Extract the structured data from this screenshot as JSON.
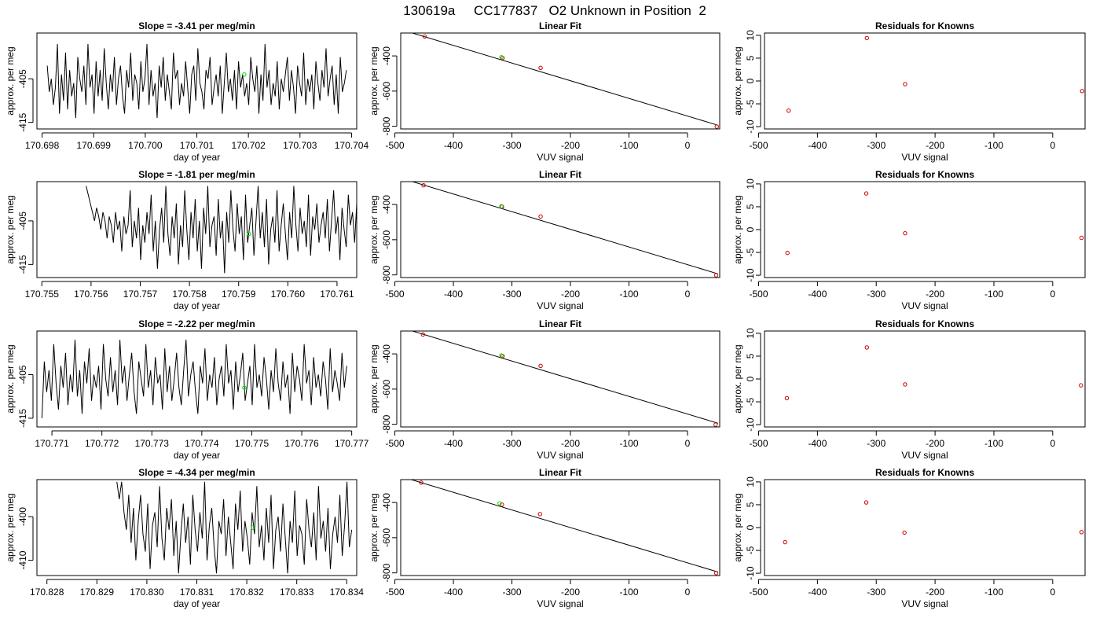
{
  "title": "130619a     CC177837   O2 Unknown in Position  2",
  "colors": {
    "known_point": "#cc0000",
    "unknown_point": "#00dd00",
    "line": "#000000"
  },
  "chart_data": [
    {
      "type": "line",
      "title": "Slope =  -3.41  per meg/min",
      "xlabel": "day of year",
      "ylabel": "approx. per meg",
      "xlim": [
        170.6979,
        170.7041
      ],
      "ylim": [
        -416.5,
        -394.5
      ],
      "xticks": [
        "170.698",
        "170.699",
        "170.700",
        "170.701",
        "170.702",
        "170.703",
        "170.704"
      ],
      "yticks": [
        "-405",
        "-415"
      ],
      "x_start": 170.6981,
      "x_end": 170.7039,
      "y": [
        -402,
        -408,
        -405,
        -411,
        -407,
        -397,
        -413,
        -404,
        -410,
        -399,
        -412,
        -403,
        -409,
        -406,
        -414,
        -400,
        -405,
        -408,
        -402,
        -411,
        -397,
        -407,
        -404,
        -413,
        -401,
        -409,
        -403,
        -410,
        -398,
        -406,
        -412,
        -404,
        -408,
        -400,
        -411,
        -405,
        -402,
        -409,
        -413,
        -403,
        -407,
        -399,
        -410,
        -404,
        -406,
        -412,
        -401,
        -408,
        -405,
        -397,
        -411,
        -403,
        -409,
        -406,
        -414,
        -402,
        -407,
        -400,
        -410,
        -404,
        -408,
        -412,
        -399,
        -405,
        -403,
        -411,
        -406,
        -409,
        -401,
        -407,
        -413,
        -404,
        -402,
        -410,
        -398,
        -406,
        -408,
        -412,
        -403,
        -405,
        -400,
        -411,
        -407,
        -404,
        -409,
        -402,
        -413,
        -406,
        -399,
        -408,
        -405,
        -410,
        -403,
        -412,
        -401,
        -407,
        -404,
        -409,
        -406,
        -411,
        -400,
        -405,
        -408,
        -402,
        -413,
        -404,
        -410,
        -397,
        -407,
        -403,
        -411,
        -406,
        -409,
        -401,
        -412,
        -405,
        -408,
        -404,
        -400,
        -410,
        -403,
        -407,
        -413,
        -402,
        -406,
        -409,
        -399,
        -411,
        -405,
        -408,
        -404,
        -412,
        -401,
        -406,
        -410,
        -403,
        -407,
        -398,
        -409,
        -405,
        -402,
        -411,
        -404,
        -413,
        -400,
        -408,
        -406,
        -403
      ],
      "unknown_point": {
        "x": 170.70192,
        "y": -404.0
      }
    },
    {
      "type": "scatter",
      "title": "Linear Fit",
      "xlabel": "VUV signal",
      "ylabel": "approx. per meg",
      "xlim": [
        -490,
        55
      ],
      "ylim": [
        -815,
        -270
      ],
      "xticks": [
        -500,
        -400,
        -300,
        -200,
        -100,
        0
      ],
      "yticks": [
        -400,
        -600,
        -800
      ],
      "knowns": [
        {
          "x": -449,
          "y": -290
        },
        {
          "x": -316,
          "y": -412
        },
        {
          "x": -251,
          "y": -468
        },
        {
          "x": 50,
          "y": -802
        }
      ],
      "unknown": {
        "x": -318,
        "y": -407
      },
      "fit_line": [
        {
          "x": -480,
          "y": -260
        },
        {
          "x": 52,
          "y": -794
        }
      ]
    },
    {
      "type": "scatter",
      "title": "Residuals for Knowns",
      "xlabel": "VUV signal",
      "ylabel": "approx. per meg",
      "xlim": [
        -490,
        55
      ],
      "ylim": [
        -10.5,
        10.5
      ],
      "xticks": [
        -500,
        -400,
        -300,
        -200,
        -100,
        0
      ],
      "yticks": [
        10,
        5,
        0,
        -5,
        -10
      ],
      "points": [
        {
          "x": -449,
          "y": -6.5
        },
        {
          "x": -316,
          "y": 9.4
        },
        {
          "x": -251,
          "y": -0.7
        },
        {
          "x": 50,
          "y": -2.2
        }
      ]
    },
    {
      "type": "line",
      "title": "Slope =  -1.81  per meg/min",
      "xlabel": "day of year",
      "ylabel": "approx. per meg",
      "xlim": [
        170.7549,
        170.7614
      ],
      "ylim": [
        -418,
        -396
      ],
      "xticks": [
        "170.755",
        "170.756",
        "170.757",
        "170.758",
        "170.759",
        "170.760",
        "170.761"
      ],
      "yticks": [
        "-405",
        "-415"
      ],
      "x_start": 170.7559,
      "x_end": 170.7614,
      "y": [
        -397,
        -399,
        -401,
        -403,
        -405,
        -402,
        -404,
        -407,
        -403,
        -405,
        -409,
        -404,
        -406,
        -410,
        -403,
        -407,
        -405,
        -412,
        -404,
        -408,
        -406,
        -398,
        -411,
        -405,
        -409,
        -402,
        -414,
        -406,
        -410,
        -403,
        -408,
        -399,
        -412,
        -405,
        -416,
        -407,
        -402,
        -410,
        -397,
        -408,
        -413,
        -404,
        -409,
        -401,
        -415,
        -406,
        -411,
        -398,
        -407,
        -414,
        -403,
        -409,
        -400,
        -412,
        -405,
        -416,
        -402,
        -408,
        -397,
        -411,
        -406,
        -404,
        -413,
        -400,
        -409,
        -405,
        -417,
        -403,
        -410,
        -398,
        -407,
        -412,
        -401,
        -408,
        -404,
        -414,
        -399,
        -410,
        -406,
        -402,
        -413,
        -405,
        -397,
        -409,
        -403,
        -411,
        -400,
        -415,
        -407,
        -404,
        -410,
        -398,
        -412,
        -406,
        -401,
        -408,
        -414,
        -403,
        -409,
        -397,
        -406,
        -412,
        -402,
        -408,
        -405,
        -411,
        -399,
        -413,
        -404,
        -407,
        -401,
        -410,
        -406,
        -403,
        -409,
        -400,
        -412,
        -405,
        -398,
        -408,
        -404,
        -414,
        -402,
        -407,
        -411,
        -399,
        -406,
        -403,
        -410,
        -401
      ],
      "unknown_point": {
        "x": 170.75921,
        "y": -408.0
      }
    },
    {
      "type": "scatter",
      "title": "Linear Fit",
      "xlabel": "VUV signal",
      "ylabel": "approx. per meg",
      "xlim": [
        -490,
        55
      ],
      "ylim": [
        -815,
        -270
      ],
      "xticks": [
        -500,
        -400,
        -300,
        -200,
        -100,
        0
      ],
      "yticks": [
        -400,
        -600,
        -800
      ],
      "knowns": [
        {
          "x": -451,
          "y": -291
        },
        {
          "x": -317,
          "y": -412
        },
        {
          "x": -251,
          "y": -468
        },
        {
          "x": 49,
          "y": -802
        }
      ],
      "unknown": {
        "x": -318,
        "y": -410
      },
      "fit_line": [
        {
          "x": -480,
          "y": -260
        },
        {
          "x": 52,
          "y": -794
        }
      ]
    },
    {
      "type": "scatter",
      "title": "Residuals for Knowns",
      "xlabel": "VUV signal",
      "ylabel": "approx. per meg",
      "xlim": [
        -490,
        55
      ],
      "ylim": [
        -10.5,
        10.5
      ],
      "xticks": [
        -500,
        -400,
        -300,
        -200,
        -100,
        0
      ],
      "yticks": [
        10,
        5,
        0,
        -5,
        -10
      ],
      "points": [
        {
          "x": -451,
          "y": -5.1
        },
        {
          "x": -317,
          "y": 7.9
        },
        {
          "x": -251,
          "y": -0.8
        },
        {
          "x": 49,
          "y": -1.8
        }
      ]
    },
    {
      "type": "line",
      "title": "Slope =  -2.22  per meg/min",
      "xlabel": "day of year",
      "ylabel": "approx. per meg",
      "xlim": [
        170.7707,
        170.7771
      ],
      "ylim": [
        -417,
        -395
      ],
      "xticks": [
        "170.771",
        "170.772",
        "170.773",
        "170.774",
        "170.775",
        "170.776",
        "170.777"
      ],
      "yticks": [
        "-405",
        "-415"
      ],
      "x_start": 170.7708,
      "x_end": 170.7769,
      "y": [
        -415,
        -402,
        -409,
        -404,
        -411,
        -398,
        -407,
        -413,
        -403,
        -408,
        -400,
        -412,
        -405,
        -409,
        -397,
        -410,
        -404,
        -414,
        -402,
        -407,
        -399,
        -411,
        -405,
        -408,
        -403,
        -413,
        -398,
        -406,
        -410,
        -401,
        -409,
        -404,
        -412,
        -397,
        -407,
        -403,
        -411,
        -405,
        -400,
        -409,
        -414,
        -402,
        -406,
        -410,
        -398,
        -408,
        -404,
        -412,
        -401,
        -407,
        -405,
        -413,
        -399,
        -409,
        -403,
        -411,
        -406,
        -400,
        -408,
        -412,
        -404,
        -397,
        -410,
        -405,
        -402,
        -409,
        -414,
        -403,
        -407,
        -399,
        -411,
        -405,
        -408,
        -401,
        -412,
        -406,
        -403,
        -410,
        -398,
        -407,
        -404,
        -413,
        -402,
        -409,
        -405,
        -400,
        -411,
        -407,
        -403,
        -412,
        -398,
        -408,
        -405,
        -410,
        -401,
        -406,
        -413,
        -404,
        -409,
        -399,
        -407,
        -411,
        -402,
        -408,
        -405,
        -414,
        -400,
        -409,
        -403,
        -406,
        -411,
        -398,
        -407,
        -404,
        -412,
        -401,
        -408,
        -405,
        -410,
        -402,
        -406,
        -413,
        -399,
        -409,
        -404,
        -407,
        -411,
        -400,
        -408,
        -403
      ],
      "unknown_point": {
        "x": 170.77485,
        "y": -408.0
      }
    },
    {
      "type": "scatter",
      "title": "Linear Fit",
      "xlabel": "VUV signal",
      "ylabel": "approx. per meg",
      "xlim": [
        -490,
        55
      ],
      "ylim": [
        -815,
        -270
      ],
      "xticks": [
        -500,
        -400,
        -300,
        -200,
        -100,
        0
      ],
      "yticks": [
        -400,
        -600,
        -800
      ],
      "knowns": [
        {
          "x": -452,
          "y": -290
        },
        {
          "x": -316,
          "y": -412
        },
        {
          "x": -251,
          "y": -468
        },
        {
          "x": 48,
          "y": -802
        }
      ],
      "unknown": {
        "x": -318,
        "y": -409
      },
      "fit_line": [
        {
          "x": -480,
          "y": -260
        },
        {
          "x": 52,
          "y": -794
        }
      ]
    },
    {
      "type": "scatter",
      "title": "Residuals for Knowns",
      "xlabel": "VUV signal",
      "ylabel": "approx. per meg",
      "xlim": [
        -490,
        55
      ],
      "ylim": [
        -10.5,
        10.5
      ],
      "xticks": [
        -500,
        -400,
        -300,
        -200,
        -100,
        0
      ],
      "yticks": [
        10,
        5,
        0,
        -5,
        -10
      ],
      "points": [
        {
          "x": -452,
          "y": -4.2
        },
        {
          "x": -316,
          "y": 6.9
        },
        {
          "x": -251,
          "y": -1.2
        },
        {
          "x": 48,
          "y": -1.4
        }
      ]
    },
    {
      "type": "line",
      "title": "Slope =  -4.34  per meg/min",
      "xlabel": "day of year",
      "ylabel": "approx. per meg",
      "xlim": [
        170.8278,
        170.8342
      ],
      "ylim": [
        -413.5,
        -391.5
      ],
      "xticks": [
        "170.828",
        "170.829",
        "170.830",
        "170.831",
        "170.832",
        "170.833",
        "170.834"
      ],
      "yticks": [
        "-400",
        "-410"
      ],
      "x_start": 170.8294,
      "x_end": 170.8341,
      "y": [
        -392,
        -396,
        -392,
        -399,
        -403,
        -395,
        -406,
        -398,
        -410,
        -401,
        -395,
        -404,
        -408,
        -397,
        -412,
        -402,
        -399,
        -407,
        -393,
        -405,
        -410,
        -398,
        -403,
        -396,
        -409,
        -401,
        -413,
        -404,
        -397,
        -406,
        -400,
        -411,
        -395,
        -403,
        -408,
        -399,
        -405,
        -392,
        -410,
        -402,
        -398,
        -407,
        -413,
        -401,
        -404,
        -396,
        -409,
        -400,
        -406,
        -412,
        -397,
        -403,
        -394,
        -408,
        -401,
        -405,
        -411,
        -399,
        -404,
        -393,
        -407,
        -402,
        -410,
        -398,
        -406,
        -395,
        -412,
        -403,
        -400,
        -408,
        -397,
        -405,
        -413,
        -401,
        -406,
        -394,
        -409,
        -402,
        -404,
        -411,
        -396,
        -403,
        -407,
        -399,
        -410,
        -393,
        -405,
        -401,
        -408,
        -398,
        -412,
        -404,
        -400,
        -406,
        -395,
        -409,
        -402,
        -392,
        -407,
        -403
      ],
      "unknown_point": {
        "x": 170.83212,
        "y": -402.5
      }
    },
    {
      "type": "scatter",
      "title": "Linear Fit",
      "xlabel": "VUV signal",
      "ylabel": "approx. per meg",
      "xlim": [
        -490,
        55
      ],
      "ylim": [
        -815,
        -270
      ],
      "xticks": [
        -500,
        -400,
        -300,
        -200,
        -100,
        0
      ],
      "yticks": [
        -400,
        -600,
        -800
      ],
      "knowns": [
        {
          "x": -455,
          "y": -287
        },
        {
          "x": -317,
          "y": -412
        },
        {
          "x": -252,
          "y": -466
        },
        {
          "x": 49,
          "y": -801
        }
      ],
      "unknown": {
        "x": -321,
        "y": -405
      },
      "fit_line": [
        {
          "x": -480,
          "y": -262
        },
        {
          "x": 52,
          "y": -795
        }
      ]
    },
    {
      "type": "scatter",
      "title": "Residuals for Knowns",
      "xlabel": "VUV signal",
      "ylabel": "approx. per meg",
      "xlim": [
        -490,
        55
      ],
      "ylim": [
        -10.5,
        10.5
      ],
      "xticks": [
        -500,
        -400,
        -300,
        -200,
        -100,
        0
      ],
      "yticks": [
        10,
        5,
        0,
        -5,
        -10
      ],
      "points": [
        {
          "x": -455,
          "y": -3.2
        },
        {
          "x": -317,
          "y": 5.5
        },
        {
          "x": -252,
          "y": -1.1
        },
        {
          "x": 49,
          "y": -1.0
        }
      ]
    }
  ]
}
